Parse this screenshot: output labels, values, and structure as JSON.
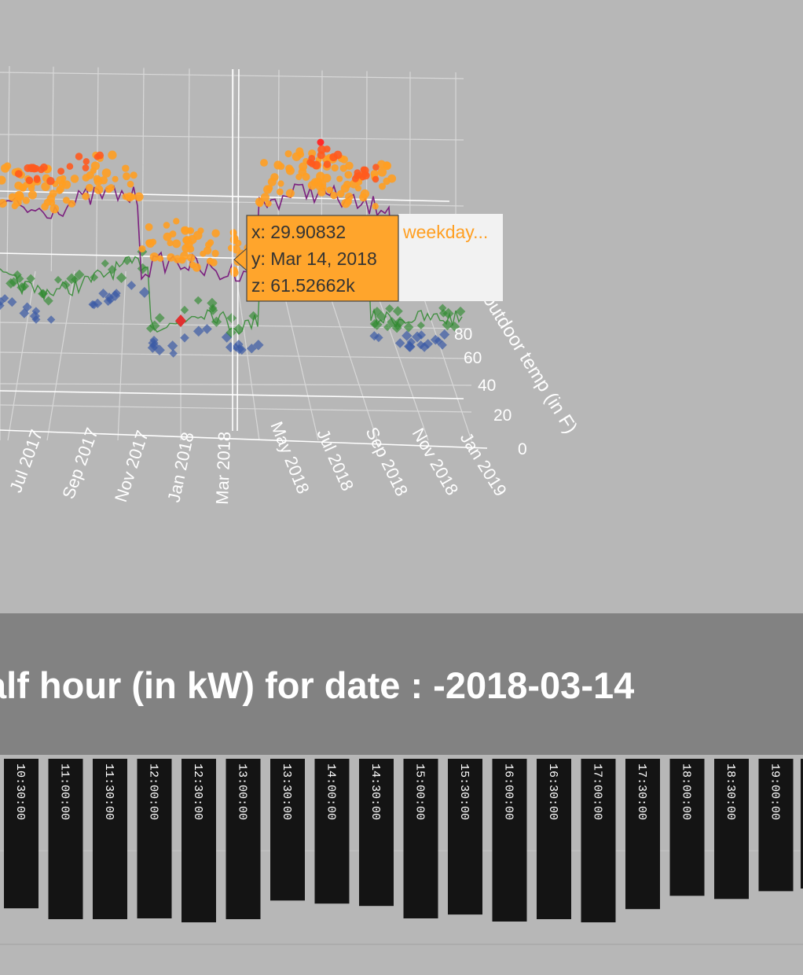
{
  "chart_data": [
    {
      "type": "scatter3d",
      "x_axis": {
        "label": "outdoor temp (in F)",
        "ticks": [
          "0",
          "20",
          "40",
          "60",
          "80"
        ]
      },
      "y_axis": {
        "label": "",
        "ticks": [
          "Jul 2017",
          "Sep 2017",
          "Nov 2017",
          "Jan 2018",
          "Mar 2018",
          "May 2018",
          "Jul 2018",
          "Sep 2018",
          "Nov 2018",
          "Jan 2019"
        ]
      },
      "series": [
        {
          "name": "weekday...",
          "color": "#ff9f22",
          "marker": "circle"
        },
        {
          "marker": "circle",
          "color": "#ff5a1e"
        },
        {
          "marker": "diamond",
          "color": "#2f8a2f"
        },
        {
          "marker": "diamond",
          "color": "#3a5aa5"
        },
        {
          "marker": "line",
          "color": "#7b1f7e"
        }
      ],
      "tooltip": {
        "x": "x: 29.90832",
        "y": "y: Mar 14, 2018",
        "z": "z: 61.52662k",
        "series_label": "weekday..."
      },
      "highlight_point": {
        "x": 29.90832,
        "y": "2018-03-14",
        "z": 61526.62
      }
    },
    {
      "type": "bar",
      "title": "alf hour (in kW) for date : -2018-03-14",
      "categories": [
        "10:30:00",
        "11:00:00",
        "11:30:00",
        "12:00:00",
        "12:30:00",
        "13:00:00",
        "13:30:00",
        "14:00:00",
        "14:30:00",
        "15:00:00",
        "15:30:00",
        "16:00:00",
        "16:30:00",
        "17:00:00",
        "17:30:00",
        "18:00:00",
        "18:30:00",
        "19:00:00"
      ],
      "values": [
        192,
        206,
        206,
        205,
        210,
        206,
        182,
        186,
        189,
        205,
        200,
        209,
        206,
        210,
        193,
        176,
        180,
        170
      ],
      "bar_color": "#141414"
    }
  ]
}
